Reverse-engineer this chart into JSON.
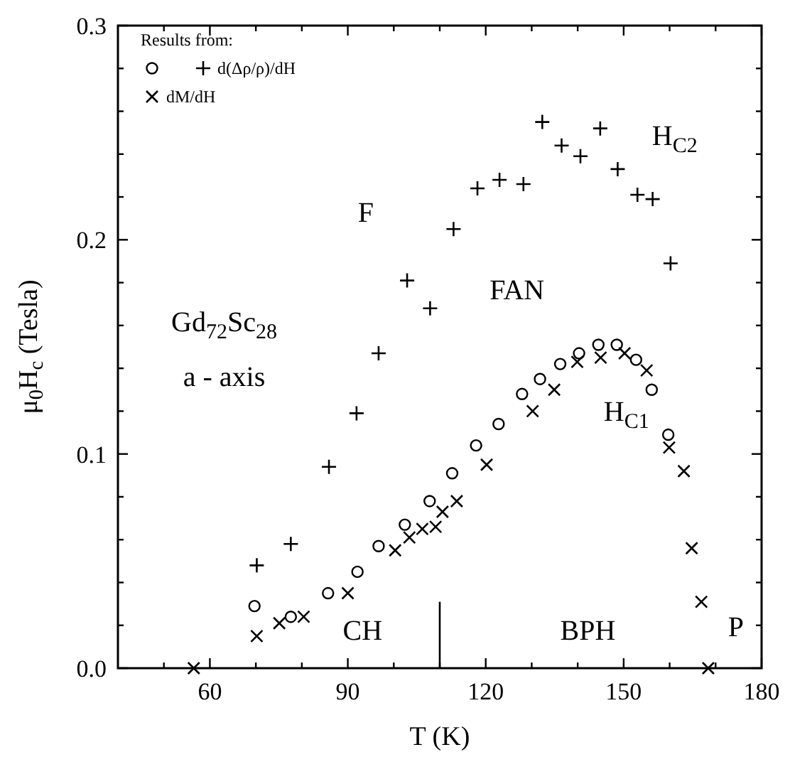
{
  "chart_data": {
    "type": "scatter",
    "xlabel": "T (K)",
    "ylabel": "μ$_{0}$H$_{c}$ (Tesla)",
    "legend_title": "Results from:",
    "legend": "top left",
    "grid": false,
    "xlim": [
      40,
      180
    ],
    "xticks": [
      {
        "value": 50,
        "label": null
      },
      60,
      {
        "value": 70,
        "label": null
      },
      {
        "value": 80,
        "label": null
      },
      90,
      {
        "value": 100,
        "label": null
      },
      {
        "value": 110,
        "label": null
      },
      120,
      {
        "value": 130,
        "label": null
      },
      {
        "value": 140,
        "label": null
      },
      150,
      {
        "value": 160,
        "label": null
      },
      {
        "value": 170,
        "label": null
      },
      180
    ],
    "ylim": [
      0,
      0.3
    ],
    "yticks": [
      {
        "value": 0,
        "label": "0.0"
      },
      {
        "value": 0.02,
        "label": null
      },
      {
        "value": 0.04,
        "label": null
      },
      {
        "value": 0.06,
        "label": null
      },
      {
        "value": 0.08,
        "label": null
      },
      {
        "value": 0.1,
        "label": "0.1"
      },
      {
        "value": 0.12,
        "label": null
      },
      {
        "value": 0.14,
        "label": null
      },
      {
        "value": 0.16,
        "label": null
      },
      {
        "value": 0.18,
        "label": null
      },
      {
        "value": 0.2,
        "label": "0.2"
      },
      {
        "value": 0.22,
        "label": null
      },
      {
        "value": 0.24,
        "label": null
      },
      {
        "value": 0.26,
        "label": null
      },
      {
        "value": 0.28,
        "label": null
      },
      {
        "value": 0.3,
        "label": "0.3"
      }
    ],
    "series": [
      {
        "color": "#000000",
        "marker": "circle",
        "x": [
          69.7,
          77.6,
          85.7,
          92.1,
          96.7,
          102.4,
          107.8,
          112.7,
          117.9,
          122.8,
          127.9,
          131.8,
          136.2,
          140.3,
          144.5,
          148.5,
          152.7,
          156.1,
          159.7
        ],
        "values": [
          0.029,
          0.024,
          0.035,
          0.045,
          0.057,
          0.067,
          0.078,
          0.091,
          0.104,
          0.114,
          0.128,
          0.135,
          0.142,
          0.147,
          0.151,
          0.151,
          0.144,
          0.13,
          0.109
        ]
      },
      {
        "name": "d(Δρ/ρ)/dH",
        "color": "#000000",
        "marker": "plus",
        "x": [
          70.2,
          77.6,
          85.9,
          91.9,
          96.7,
          102.9,
          107.9,
          113.0,
          118.2,
          123.0,
          128.2,
          132.3,
          136.5,
          140.6,
          144.9,
          148.7,
          153.0,
          156.3,
          160.2
        ],
        "values": [
          0.048,
          0.058,
          0.094,
          0.119,
          0.147,
          0.181,
          0.168,
          0.205,
          0.224,
          0.228,
          0.226,
          0.255,
          0.244,
          0.239,
          0.252,
          0.233,
          0.221,
          0.219,
          0.189
        ]
      },
      {
        "name": "dM/dH",
        "color": "#000000",
        "marker": "cross",
        "x": [
          56.5,
          70.2,
          75.1,
          80.4,
          90.0,
          100.3,
          103.4,
          106.2,
          109.1,
          110.6,
          113.7,
          120.2,
          130.2,
          134.9,
          139.9,
          145.0,
          150.2,
          155.0,
          159.9,
          163.1,
          164.8,
          166.9,
          168.4
        ],
        "values": [
          0,
          0.015,
          0.021,
          0.024,
          0.035,
          0.055,
          0.061,
          0.065,
          0.066,
          0.073,
          0.078,
          0.095,
          0.12,
          0.13,
          0.143,
          0.145,
          0.147,
          0.139,
          0.103,
          0.092,
          0.056,
          0.031,
          0
        ]
      },
      {
        "type": "line",
        "color": "#000000",
        "marker": "none",
        "x": [
          110,
          110
        ],
        "values": [
          0,
          0.031
        ]
      }
    ],
    "annotations": [
      "F",
      "FAN",
      "H$_{C2}$",
      "H$_{C1}$",
      "Gd$_{72}$Sc$_{28}$",
      "a - axis",
      "CH",
      "BPH",
      "P"
    ]
  }
}
